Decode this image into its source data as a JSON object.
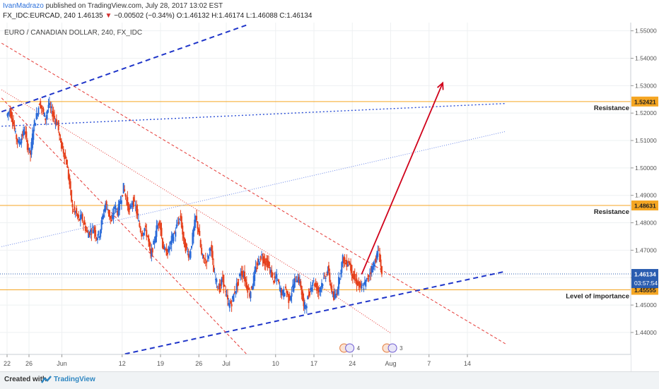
{
  "header": {
    "author": "IvanMadrazo",
    "published_text": " published on TradingView.com, July 28, 2017 13:02 EST",
    "symbol_line_prefix": "FX_IDC:EURCAD, 240  1.46135 ",
    "change_arrow": "▼",
    "change_text": " −0.00502 (−0.34%)",
    "ohlc_text": "  O:1.46132  H:1.46174  L:1.46088  C:1.46134"
  },
  "footer": {
    "created_with": "Created with",
    "brand": "TradingView"
  },
  "chart_data": {
    "type": "candlestick",
    "title": "EURO / CANADIAN DOLLAR, 240, FX_IDC",
    "ylim": [
      1.432,
      1.553
    ],
    "y_ticks": [
      "1.55000",
      "1.54000",
      "1.53000",
      "1.52000",
      "1.51000",
      "1.50000",
      "1.49000",
      "1.48000",
      "1.47000",
      "1.46000",
      "1.45000",
      "1.44000"
    ],
    "x_ticks": [
      {
        "label": "22",
        "day": 0
      },
      {
        "label": "26",
        "day": 4
      },
      {
        "label": "Jun",
        "day": 10
      },
      {
        "label": "12",
        "day": 21
      },
      {
        "label": "19",
        "day": 28
      },
      {
        "label": "26",
        "day": 35
      },
      {
        "label": "Jul",
        "day": 40
      },
      {
        "label": "10",
        "day": 49
      },
      {
        "label": "17",
        "day": 56
      },
      {
        "label": "24",
        "day": 63
      },
      {
        "label": "Aug",
        "day": 70
      },
      {
        "label": "7",
        "day": 77
      },
      {
        "label": "14",
        "day": 84
      }
    ],
    "price_path": [
      [
        0,
        1.519
      ],
      [
        1,
        1.521
      ],
      [
        2,
        1.518
      ],
      [
        3,
        1.512
      ],
      [
        4,
        1.509
      ],
      [
        5,
        1.511
      ],
      [
        6,
        1.514
      ],
      [
        7,
        1.508
      ],
      [
        8,
        1.505
      ],
      [
        9,
        1.515
      ],
      [
        10,
        1.519
      ],
      [
        11,
        1.524
      ],
      [
        12,
        1.521
      ],
      [
        13,
        1.518
      ],
      [
        14,
        1.523
      ],
      [
        15,
        1.521
      ],
      [
        16,
        1.518
      ],
      [
        17,
        1.516
      ],
      [
        18,
        1.509
      ],
      [
        19,
        1.506
      ],
      [
        20,
        1.502
      ],
      [
        21,
        1.494
      ],
      [
        22,
        1.485
      ],
      [
        23,
        1.484
      ],
      [
        24,
        1.481
      ],
      [
        25,
        1.482
      ],
      [
        26,
        1.479
      ],
      [
        27,
        1.476
      ],
      [
        28,
        1.477
      ],
      [
        29,
        1.478
      ],
      [
        30,
        1.475
      ],
      [
        31,
        1.476
      ],
      [
        32,
        1.482
      ],
      [
        33,
        1.487
      ],
      [
        34,
        1.484
      ],
      [
        35,
        1.48
      ],
      [
        36,
        1.486
      ],
      [
        37,
        1.484
      ],
      [
        38,
        1.488
      ],
      [
        39,
        1.493
      ],
      [
        40,
        1.488
      ],
      [
        41,
        1.484
      ],
      [
        42,
        1.488
      ],
      [
        43,
        1.486
      ],
      [
        44,
        1.48
      ],
      [
        45,
        1.476
      ],
      [
        46,
        1.478
      ],
      [
        47,
        1.475
      ],
      [
        48,
        1.468
      ],
      [
        49,
        1.472
      ],
      [
        50,
        1.478
      ],
      [
        51,
        1.481
      ],
      [
        52,
        1.472
      ],
      [
        53,
        1.469
      ],
      [
        54,
        1.47
      ],
      [
        55,
        1.474
      ],
      [
        56,
        1.476
      ],
      [
        57,
        1.48
      ],
      [
        58,
        1.482
      ],
      [
        59,
        1.473
      ],
      [
        60,
        1.47
      ],
      [
        61,
        1.468
      ],
      [
        62,
        1.475
      ],
      [
        63,
        1.482
      ],
      [
        64,
        1.477
      ],
      [
        65,
        1.468
      ],
      [
        66,
        1.466
      ],
      [
        67,
        1.467
      ],
      [
        68,
        1.472
      ],
      [
        69,
        1.462
      ],
      [
        70,
        1.458
      ],
      [
        71,
        1.456
      ],
      [
        72,
        1.46
      ],
      [
        73,
        1.454
      ],
      [
        74,
        1.45
      ],
      [
        75,
        1.451
      ],
      [
        76,
        1.455
      ],
      [
        77,
        1.458
      ],
      [
        78,
        1.462
      ],
      [
        79,
        1.461
      ],
      [
        80,
        1.457
      ],
      [
        81,
        1.454
      ],
      [
        82,
        1.458
      ],
      [
        83,
        1.463
      ],
      [
        84,
        1.466
      ],
      [
        85,
        1.468
      ],
      [
        86,
        1.466
      ],
      [
        87,
        1.465
      ],
      [
        88,
        1.462
      ],
      [
        89,
        1.459
      ],
      [
        90,
        1.46
      ],
      [
        91,
        1.456
      ],
      [
        92,
        1.454
      ],
      [
        93,
        1.456
      ],
      [
        94,
        1.452
      ],
      [
        95,
        1.455
      ],
      [
        96,
        1.459
      ],
      [
        97,
        1.46
      ],
      [
        98,
        1.457
      ],
      [
        99,
        1.449
      ],
      [
        100,
        1.451
      ],
      [
        101,
        1.455
      ],
      [
        102,
        1.459
      ],
      [
        103,
        1.457
      ],
      [
        104,
        1.455
      ],
      [
        105,
        1.458
      ],
      [
        106,
        1.46
      ],
      [
        107,
        1.463
      ],
      [
        108,
        1.457
      ],
      [
        109,
        1.452
      ],
      [
        110,
        1.455
      ],
      [
        111,
        1.461
      ],
      [
        112,
        1.467
      ],
      [
        113,
        1.465
      ],
      [
        114,
        1.466
      ],
      [
        115,
        1.462
      ],
      [
        116,
        1.459
      ],
      [
        117,
        1.458
      ],
      [
        118,
        1.456
      ],
      [
        119,
        1.457
      ],
      [
        120,
        1.459
      ],
      [
        121,
        1.462
      ],
      [
        122,
        1.464
      ],
      [
        123,
        1.467
      ],
      [
        124,
        1.47
      ],
      [
        125,
        1.461
      ]
    ],
    "horizontal_levels": [
      {
        "price": 1.52421,
        "label": "1.52421",
        "annotation": "Resistance",
        "color": "#f5a623"
      },
      {
        "price": 1.48631,
        "label": "1.48631",
        "annotation": "Resistance",
        "color": "#f5a623"
      },
      {
        "price": 1.45555,
        "label": "1.45555",
        "annotation": "Level of importance",
        "color": "#f5a623"
      }
    ],
    "last_price": {
      "label": "1.46134",
      "countdown": "03:57:54",
      "color": "#2a5db0"
    },
    "trendlines": [
      {
        "style": "blue-dash",
        "from": {
          "day": -1,
          "price": 1.5205
        },
        "to": {
          "day": 44,
          "price": 1.5523
        }
      },
      {
        "style": "blue-dash",
        "from": {
          "day": 20,
          "price": 1.4315
        },
        "to": {
          "day": 91,
          "price": 1.4623
        }
      },
      {
        "style": "blue-dot",
        "from": {
          "day": -1,
          "price": 1.5152
        },
        "to": {
          "day": 91,
          "price": 1.5235
        }
      },
      {
        "style": "blue-fine-dot",
        "from": {
          "day": -1,
          "price": 1.4713
        },
        "to": {
          "day": 91,
          "price": 1.5133
        }
      },
      {
        "style": "red-dash",
        "from": {
          "day": -1,
          "price": 1.5455
        },
        "to": {
          "day": 91,
          "price": 1.4358
        }
      },
      {
        "style": "red-dash",
        "from": {
          "day": -1,
          "price": 1.5255
        },
        "to": {
          "day": 44,
          "price": 1.4315
        }
      },
      {
        "style": "red-dot",
        "from": {
          "day": -1,
          "price": 1.5285
        },
        "to": {
          "day": 55,
          "price": 1.4598
        }
      },
      {
        "style": "red-dot",
        "from": {
          "day": 55,
          "price": 1.4598
        },
        "to": {
          "day": 70,
          "price": 1.4398
        }
      }
    ],
    "projection_arrow": {
      "from": {
        "day": 64.7,
        "price": 1.4612
      },
      "to": {
        "day": 79.5,
        "price": 1.531
      },
      "color": "#d0021b"
    },
    "event_markers": [
      {
        "day": 61.5,
        "text": "4"
      },
      {
        "day": 69.3,
        "text": "3"
      }
    ]
  }
}
